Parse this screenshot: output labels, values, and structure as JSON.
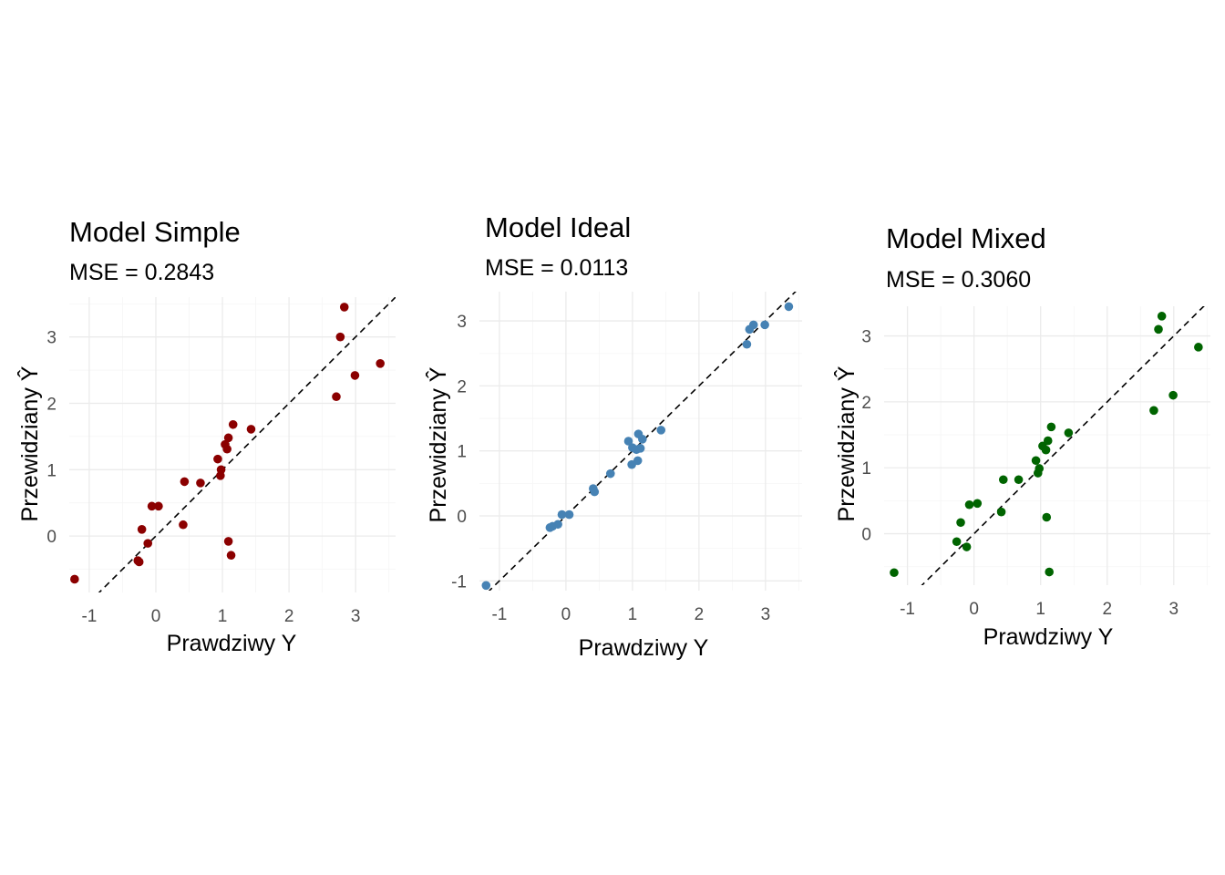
{
  "chart_data": [
    {
      "type": "scatter",
      "title": "Model Simple",
      "subtitle": "MSE = 0.2843",
      "xlabel": "Prawdziwy Y",
      "ylabel": "Przewidziany Ŷ",
      "xlim": [
        -1.3,
        3.6
      ],
      "ylim": [
        -0.85,
        3.6
      ],
      "xticks": [
        "-1",
        "0",
        "1",
        "2",
        "3"
      ],
      "yticks": [
        "0",
        "1",
        "2",
        "3"
      ],
      "grid": true,
      "reference_line": "y = x",
      "point_color": "#8b0000",
      "points": [
        {
          "x": -1.22,
          "y": -0.65
        },
        {
          "x": -0.27,
          "y": -0.37
        },
        {
          "x": -0.25,
          "y": -0.39
        },
        {
          "x": -0.21,
          "y": 0.1
        },
        {
          "x": -0.12,
          "y": -0.11
        },
        {
          "x": -0.06,
          "y": 0.45
        },
        {
          "x": 0.04,
          "y": 0.45
        },
        {
          "x": 0.41,
          "y": 0.17
        },
        {
          "x": 0.43,
          "y": 0.82
        },
        {
          "x": 0.67,
          "y": 0.8
        },
        {
          "x": 0.93,
          "y": 1.16
        },
        {
          "x": 0.97,
          "y": 0.91
        },
        {
          "x": 0.98,
          "y": 1.0
        },
        {
          "x": 1.04,
          "y": 1.38
        },
        {
          "x": 1.07,
          "y": 1.31
        },
        {
          "x": 1.09,
          "y": 1.48
        },
        {
          "x": 1.09,
          "y": -0.08
        },
        {
          "x": 1.13,
          "y": -0.29
        },
        {
          "x": 1.16,
          "y": 1.68
        },
        {
          "x": 1.43,
          "y": 1.61
        },
        {
          "x": 2.71,
          "y": 2.1
        },
        {
          "x": 2.77,
          "y": 3.0
        },
        {
          "x": 2.83,
          "y": 3.45
        },
        {
          "x": 2.99,
          "y": 2.42
        },
        {
          "x": 3.37,
          "y": 2.6
        }
      ]
    },
    {
      "type": "scatter",
      "title": "Model Ideal",
      "subtitle": "MSE = 0.0113",
      "xlabel": "Prawdziwy Y",
      "ylabel": "Przewidziany Ŷ",
      "xlim": [
        -1.3,
        3.55
      ],
      "ylim": [
        -1.15,
        3.45
      ],
      "xticks": [
        "-1",
        "0",
        "1",
        "2",
        "3"
      ],
      "yticks": [
        "-1",
        "0",
        "1",
        "2",
        "3"
      ],
      "grid": true,
      "reference_line": "y = x",
      "point_color": "#4682b4",
      "points": [
        {
          "x": -1.2,
          "y": -1.07
        },
        {
          "x": -0.24,
          "y": -0.18
        },
        {
          "x": -0.2,
          "y": -0.16
        },
        {
          "x": -0.12,
          "y": -0.13
        },
        {
          "x": -0.06,
          "y": 0.02
        },
        {
          "x": 0.05,
          "y": 0.02
        },
        {
          "x": 0.41,
          "y": 0.42
        },
        {
          "x": 0.43,
          "y": 0.37
        },
        {
          "x": 0.67,
          "y": 0.65
        },
        {
          "x": 0.94,
          "y": 1.15
        },
        {
          "x": 0.99,
          "y": 0.79
        },
        {
          "x": 1.0,
          "y": 1.05
        },
        {
          "x": 1.06,
          "y": 1.02
        },
        {
          "x": 1.08,
          "y": 0.85
        },
        {
          "x": 1.09,
          "y": 1.26
        },
        {
          "x": 1.12,
          "y": 1.04
        },
        {
          "x": 1.15,
          "y": 1.18
        },
        {
          "x": 1.43,
          "y": 1.32
        },
        {
          "x": 2.72,
          "y": 2.64
        },
        {
          "x": 2.76,
          "y": 2.87
        },
        {
          "x": 2.82,
          "y": 2.94
        },
        {
          "x": 2.99,
          "y": 2.94
        },
        {
          "x": 3.35,
          "y": 3.22
        }
      ]
    },
    {
      "type": "scatter",
      "title": "Model Mixed",
      "subtitle": "MSE = 0.3060",
      "xlabel": "Prawdziwy Y",
      "ylabel": "Przewidziany Ŷ",
      "xlim": [
        -1.35,
        3.55
      ],
      "ylim": [
        -0.78,
        3.45
      ],
      "xticks": [
        "-1",
        "0",
        "1",
        "2",
        "3"
      ],
      "yticks": [
        "0",
        "1",
        "2",
        "3"
      ],
      "grid": true,
      "reference_line": "y = x",
      "point_color": "#006400",
      "points": [
        {
          "x": -1.2,
          "y": -0.59
        },
        {
          "x": -0.26,
          "y": -0.12
        },
        {
          "x": -0.2,
          "y": 0.17
        },
        {
          "x": -0.11,
          "y": -0.2
        },
        {
          "x": -0.07,
          "y": 0.44
        },
        {
          "x": 0.05,
          "y": 0.46
        },
        {
          "x": 0.41,
          "y": 0.33
        },
        {
          "x": 0.44,
          "y": 0.82
        },
        {
          "x": 0.67,
          "y": 0.82
        },
        {
          "x": 0.93,
          "y": 1.11
        },
        {
          "x": 0.96,
          "y": 0.92
        },
        {
          "x": 0.98,
          "y": 0.99
        },
        {
          "x": 1.03,
          "y": 1.33
        },
        {
          "x": 1.08,
          "y": 1.27
        },
        {
          "x": 1.09,
          "y": 0.25
        },
        {
          "x": 1.11,
          "y": 1.41
        },
        {
          "x": 1.13,
          "y": -0.58
        },
        {
          "x": 1.16,
          "y": 1.62
        },
        {
          "x": 1.42,
          "y": 1.53
        },
        {
          "x": 2.7,
          "y": 1.87
        },
        {
          "x": 2.77,
          "y": 3.1
        },
        {
          "x": 2.82,
          "y": 3.3
        },
        {
          "x": 2.99,
          "y": 2.1
        },
        {
          "x": 3.37,
          "y": 2.83
        }
      ]
    }
  ]
}
